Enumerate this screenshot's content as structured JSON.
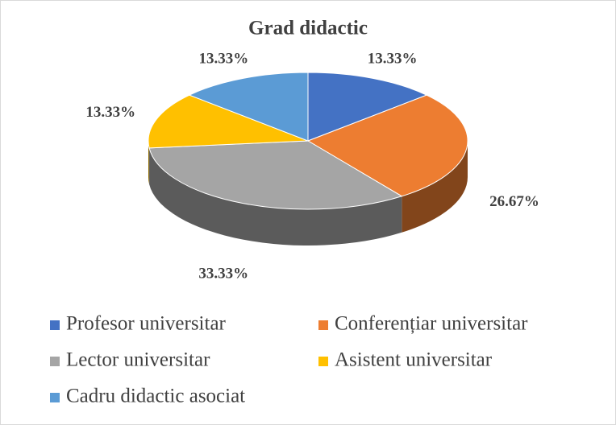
{
  "chart_data": {
    "type": "pie3d",
    "title": "Grad didactic",
    "categories": [
      "Profesor universitar",
      "Conferențiar universitar",
      "Lector universitar",
      "Asistent universitar",
      "Cadru didactic asociat"
    ],
    "values": [
      13.33,
      26.67,
      33.33,
      13.33,
      13.33
    ],
    "value_labels": [
      "13.33%",
      "26.67%",
      "33.33%",
      "13.33%",
      "13.33%"
    ],
    "colors": [
      "#4472c4",
      "#ed7d31",
      "#a5a5a5",
      "#ffc000",
      "#5b9bd5"
    ],
    "legend": "bottom"
  }
}
